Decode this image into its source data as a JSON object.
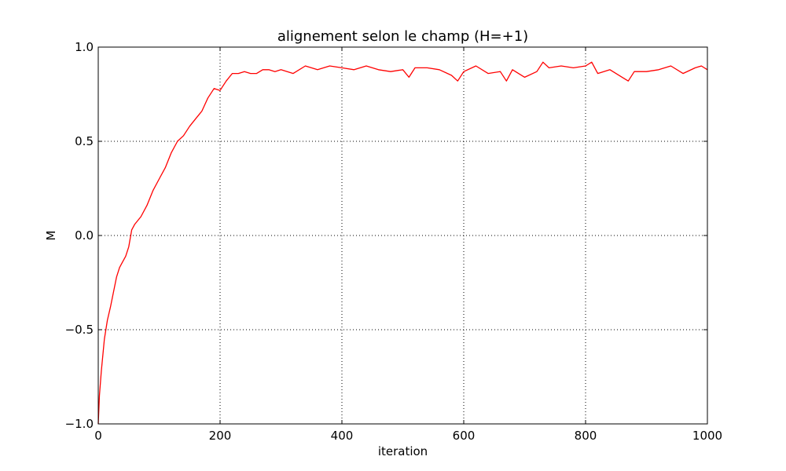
{
  "chart_data": {
    "type": "line",
    "title": "alignement selon le champ (H=+1)",
    "xlabel": "iteration",
    "ylabel": "M",
    "xlim": [
      0,
      1000
    ],
    "ylim": [
      -1.0,
      1.0
    ],
    "grid": true,
    "x_ticks": [
      0,
      200,
      400,
      600,
      800,
      1000
    ],
    "x_tick_labels": [
      "0",
      "200",
      "400",
      "600",
      "800",
      "1000"
    ],
    "y_ticks": [
      -1.0,
      -0.5,
      0.0,
      0.5,
      1.0
    ],
    "y_tick_labels": [
      "−1.0",
      "−0.5",
      "0.0",
      "0.5",
      "1.0"
    ],
    "series": [
      {
        "color": "#ff0000",
        "x": [
          0,
          2,
          5,
          10,
          15,
          20,
          25,
          30,
          35,
          40,
          45,
          50,
          55,
          60,
          70,
          80,
          90,
          100,
          110,
          120,
          130,
          140,
          150,
          160,
          170,
          180,
          190,
          200,
          210,
          220,
          230,
          240,
          250,
          260,
          270,
          280,
          290,
          300,
          320,
          340,
          360,
          380,
          400,
          420,
          440,
          460,
          480,
          500,
          510,
          520,
          540,
          560,
          580,
          590,
          600,
          620,
          640,
          660,
          670,
          680,
          700,
          720,
          730,
          740,
          760,
          780,
          800,
          810,
          820,
          840,
          860,
          870,
          880,
          900,
          920,
          940,
          960,
          980,
          990,
          1000
        ],
        "y": [
          -1.0,
          -0.85,
          -0.72,
          -0.55,
          -0.45,
          -0.38,
          -0.3,
          -0.22,
          -0.17,
          -0.14,
          -0.11,
          -0.06,
          0.03,
          0.06,
          0.1,
          0.16,
          0.24,
          0.3,
          0.36,
          0.44,
          0.5,
          0.53,
          0.58,
          0.62,
          0.66,
          0.73,
          0.78,
          0.77,
          0.82,
          0.86,
          0.86,
          0.87,
          0.86,
          0.86,
          0.88,
          0.88,
          0.87,
          0.88,
          0.86,
          0.9,
          0.88,
          0.9,
          0.89,
          0.88,
          0.9,
          0.88,
          0.87,
          0.88,
          0.84,
          0.89,
          0.89,
          0.88,
          0.85,
          0.82,
          0.87,
          0.9,
          0.86,
          0.87,
          0.82,
          0.88,
          0.84,
          0.87,
          0.92,
          0.89,
          0.9,
          0.89,
          0.9,
          0.92,
          0.86,
          0.88,
          0.84,
          0.82,
          0.87,
          0.87,
          0.88,
          0.9,
          0.86,
          0.89,
          0.9,
          0.88
        ]
      }
    ]
  }
}
